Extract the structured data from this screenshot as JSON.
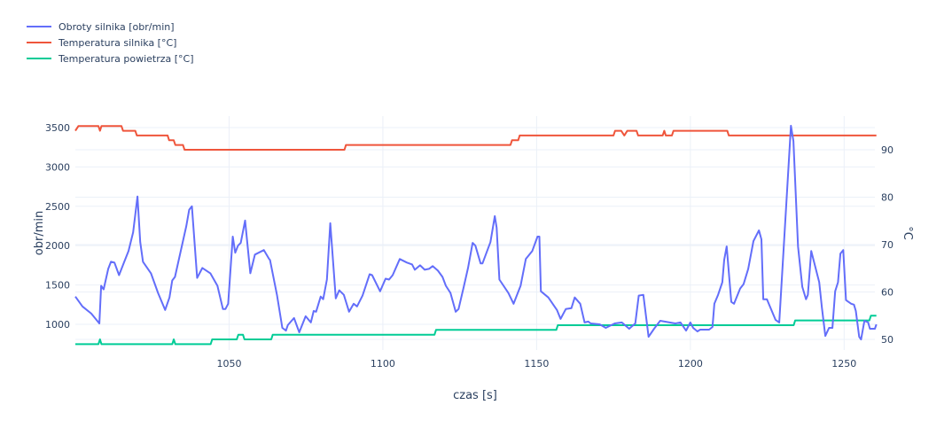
{
  "chart_data": {
    "type": "line",
    "title": "",
    "xlabel": "czas [s]",
    "ylabel": "obr/min",
    "y2label": "°C",
    "xlim": [
      1000,
      1260
    ],
    "ylim": [
      673,
      3646
    ],
    "y2lim": [
      47.76,
      97.1
    ],
    "grid": true,
    "legend_position": "top-left",
    "x_ticks": [
      1050,
      1100,
      1150,
      1200,
      1250
    ],
    "x_tick_labels": [
      "1050",
      "1100",
      "1150",
      "1200",
      "1250"
    ],
    "y_ticks": [
      1000,
      1500,
      2000,
      2500,
      3000,
      3500
    ],
    "y_tick_labels": [
      "1000",
      "1500",
      "2000",
      "2500",
      "3000",
      "3500"
    ],
    "y2_ticks": [
      50,
      60,
      70,
      80,
      90
    ],
    "y2_tick_labels": [
      "50",
      "60",
      "70",
      "80",
      "90"
    ],
    "series": [
      {
        "name": "Obroty silnika [obr/min]",
        "axis": "y",
        "color": "#636efa",
        "x": [
          1000,
          1002.3,
          1005.2,
          1007.8,
          1008.4,
          1009.2,
          1010.7,
          1011.6,
          1012.7,
          1014.2,
          1015.9,
          1017.3,
          1018.8,
          1020.2,
          1021.1,
          1022.0,
          1024.6,
          1026.9,
          1029.2,
          1030.6,
          1031.5,
          1032.4,
          1036.1,
          1037.0,
          1037.9,
          1039.6,
          1041.3,
          1043.9,
          1046.2,
          1048.0,
          1048.8,
          1049.7,
          1051.2,
          1052.0,
          1052.9,
          1053.8,
          1055.2,
          1056.9,
          1058.4,
          1061.3,
          1063.0,
          1063.3,
          1065.6,
          1067.3,
          1068.5,
          1069.1,
          1071.1,
          1072.8,
          1074.9,
          1076.6,
          1077.5,
          1078.3,
          1079.8,
          1080.6,
          1081.8,
          1082.9,
          1084.7,
          1085.8,
          1087.3,
          1089.0,
          1090.5,
          1091.6,
          1093.4,
          1095.7,
          1096.5,
          1099.1,
          1100.9,
          1102.0,
          1103.2,
          1105.5,
          1107.8,
          1109.5,
          1110.4,
          1112.1,
          1113.6,
          1115.0,
          1116.2,
          1117.9,
          1119.4,
          1120.5,
          1122.0,
          1123.7,
          1124.6,
          1126.3,
          1127.7,
          1129.2,
          1130.1,
          1131.8,
          1132.4,
          1135.0,
          1136.4,
          1137.0,
          1137.9,
          1140.8,
          1142.5,
          1144.8,
          1146.5,
          1148.6,
          1150.3,
          1150.9,
          1151.4,
          1153.8,
          1156.6,
          1157.8,
          1159.5,
          1161.3,
          1162.4,
          1164.2,
          1165.6,
          1166.8,
          1167.6,
          1170.5,
          1172.5,
          1175.4,
          1177.7,
          1180.1,
          1182.1,
          1183.2,
          1184.7,
          1186.4,
          1188.2,
          1190.2,
          1195.1,
          1196.8,
          1198.6,
          1200.0,
          1200.9,
          1202.3,
          1203.2,
          1206.1,
          1207.2,
          1207.8,
          1209.0,
          1210.4,
          1211.0,
          1211.8,
          1213.3,
          1214.2,
          1216.2,
          1217.3,
          1218.8,
          1220.5,
          1222.3,
          1223.1,
          1223.7,
          1224.9,
          1227.7,
          1228.9,
          1231.2,
          1232.7,
          1233.5,
          1235.0,
          1236.4,
          1237.6,
          1238.2,
          1239.3,
          1241.9,
          1242.8,
          1243.9,
          1245.1,
          1246.2,
          1247.1,
          1248.0,
          1248.8,
          1249.7,
          1250.6,
          1252.3,
          1253.2,
          1253.8,
          1254.9,
          1255.5,
          1256.6,
          1257.8,
          1258.4,
          1260.0,
          1260.5
        ],
        "y": [
          1352,
          1227,
          1136,
          1011,
          1489,
          1443,
          1705,
          1795,
          1784,
          1625,
          1795,
          1932,
          2170,
          2625,
          2045,
          1795,
          1648,
          1398,
          1182,
          1341,
          1557,
          1602,
          2250,
          2455,
          2500,
          1590,
          1716,
          1648,
          1489,
          1193,
          1193,
          1261,
          2114,
          1909,
          2000,
          2034,
          2318,
          1648,
          1886,
          1943,
          1830,
          1818,
          1364,
          955,
          920,
          989,
          1080,
          898,
          1102,
          1023,
          1170,
          1159,
          1352,
          1318,
          1568,
          2284,
          1330,
          1432,
          1375,
          1159,
          1261,
          1227,
          1364,
          1636,
          1625,
          1420,
          1580,
          1568,
          1625,
          1830,
          1784,
          1761,
          1693,
          1750,
          1693,
          1705,
          1739,
          1682,
          1602,
          1489,
          1398,
          1159,
          1193,
          1477,
          1716,
          2034,
          2000,
          1773,
          1773,
          2045,
          2375,
          2227,
          1568,
          1398,
          1261,
          1489,
          1830,
          1932,
          2114,
          2114,
          1420,
          1341,
          1182,
          1068,
          1193,
          1205,
          1341,
          1261,
          1023,
          1034,
          1011,
          1000,
          955,
          1011,
          1023,
          943,
          1011,
          1364,
          1375,
          841,
          943,
          1045,
          1011,
          1023,
          920,
          1023,
          955,
          909,
          932,
          932,
          966,
          1261,
          1375,
          1534,
          1818,
          1989,
          1284,
          1261,
          1455,
          1511,
          1705,
          2057,
          2193,
          2080,
          1318,
          1318,
          1057,
          1023,
          2534,
          3523,
          3330,
          1989,
          1477,
          1318,
          1375,
          1932,
          1534,
          1205,
          852,
          955,
          955,
          1420,
          1534,
          1898,
          1943,
          1307,
          1261,
          1250,
          1170,
          841,
          807,
          1045,
          1023,
          943,
          943,
          1000
        ]
      },
      {
        "name": "Temperatura silnika [°C]",
        "axis": "y2",
        "color": "#EF553B",
        "x": [
          1000,
          1001,
          1007.5,
          1008,
          1008.5,
          1015,
          1015.5,
          1019.5,
          1020,
          1030,
          1030.5,
          1032,
          1032.5,
          1035,
          1035.5,
          1087.5,
          1088,
          1141.5,
          1142,
          1144,
          1144.5,
          1175,
          1175.5,
          1177.5,
          1178.5,
          1179.5,
          1182.5,
          1183,
          1191,
          1191.5,
          1192,
          1194,
          1194.5,
          1212,
          1212.5,
          1260.5
        ],
        "y": [
          94,
          95,
          95,
          94,
          95,
          95,
          94,
          94,
          93,
          93,
          92,
          92,
          91,
          91,
          90,
          90,
          91,
          91,
          92,
          92,
          93,
          93,
          94,
          94,
          93,
          94,
          94,
          93,
          93,
          94,
          93,
          93,
          94,
          94,
          93,
          93
        ]
      },
      {
        "name": "Temperatura powietrza [°C]",
        "axis": "y2",
        "color": "#00cc96",
        "x": [
          1000,
          1007.5,
          1008,
          1008.5,
          1031.5,
          1032,
          1032.5,
          1044,
          1044.5,
          1052.5,
          1053,
          1054.5,
          1055,
          1063.7,
          1064.2,
          1116.8,
          1117.3,
          1156.4,
          1156.9,
          1233.6,
          1234.1,
          1258.2,
          1258.7,
          1260.5
        ],
        "y": [
          49,
          49,
          50,
          49,
          49,
          50,
          49,
          49,
          50,
          50,
          51,
          51,
          50,
          50,
          51,
          51,
          52,
          52,
          53,
          53,
          54,
          54,
          55,
          55
        ]
      }
    ]
  }
}
